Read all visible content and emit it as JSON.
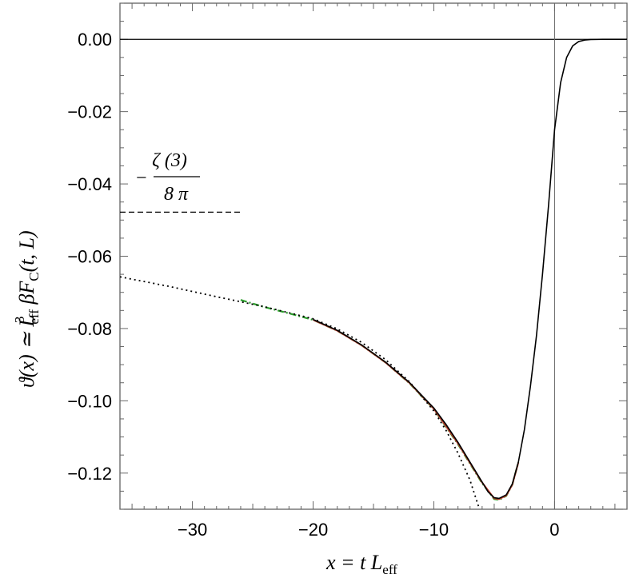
{
  "chart_data": {
    "type": "line",
    "xlabel": {
      "main": "x = t L",
      "sub": "eff"
    },
    "ylabel": {
      "part1": "ϑ(x) ≃ L",
      "sup": "3",
      "sub1": "eff",
      "part2": " βF",
      "sub2": "C",
      "part3": "(t, L)"
    },
    "xlim": [
      -36,
      6
    ],
    "ylim": [
      -0.13,
      0.01
    ],
    "x_ticks": [
      -30,
      -20,
      -10,
      0
    ],
    "x_tick_labels": [
      "−30",
      "−20",
      "−10",
      "0"
    ],
    "y_ticks": [
      0.0,
      -0.02,
      -0.04,
      -0.06,
      -0.08,
      -0.1,
      -0.12
    ],
    "y_tick_labels": [
      "0.00",
      "−0.02",
      "−0.04",
      "−0.06",
      "−0.08",
      "−0.10",
      "−0.12"
    ],
    "annotation": {
      "minus": "−",
      "numerator": "ζ (3)",
      "denominator": "8 π"
    },
    "reference_level": {
      "x": [
        -36,
        -26
      ],
      "y": -0.0478
    },
    "series": [
      {
        "style": "solid",
        "color": "#000000",
        "x": [
          -20,
          -18,
          -16,
          -14,
          -12,
          -10,
          -9,
          -8,
          -7,
          -6,
          -5.5,
          -5,
          -4.6,
          -4,
          -3.5,
          -3,
          -2.5,
          -2,
          -1.5,
          -1,
          -0.5,
          0,
          0.5,
          1,
          1.5,
          2,
          2.5,
          3,
          4,
          5,
          6
        ],
        "y": [
          -0.0775,
          -0.0805,
          -0.0845,
          -0.0893,
          -0.095,
          -0.102,
          -0.1065,
          -0.1115,
          -0.117,
          -0.1225,
          -0.1252,
          -0.1268,
          -0.127,
          -0.126,
          -0.123,
          -0.117,
          -0.108,
          -0.096,
          -0.082,
          -0.065,
          -0.046,
          -0.025,
          -0.012,
          -0.005,
          -0.0018,
          -0.0006,
          -0.0002,
          -5e-05,
          0,
          0,
          0
        ]
      },
      {
        "style": "dotted",
        "color": "#000000",
        "x": [
          -36,
          -32,
          -28,
          -24,
          -20,
          -18,
          -16,
          -14,
          -12,
          -10,
          -9,
          -8,
          -7,
          -6.3
        ],
        "y": [
          -0.0657,
          -0.0683,
          -0.0712,
          -0.074,
          -0.0773,
          -0.0801,
          -0.0838,
          -0.0886,
          -0.0948,
          -0.1028,
          -0.1081,
          -0.1145,
          -0.122,
          -0.1292
        ]
      },
      {
        "style": "dash-dot",
        "color": "#2a9d2a",
        "x": [
          -26,
          -24,
          -22,
          -20,
          -18,
          -16,
          -14,
          -12,
          -10,
          -8,
          -6,
          -5,
          -4.6,
          -4,
          -3.5,
          -3
        ],
        "y": [
          -0.0721,
          -0.0741,
          -0.0758,
          -0.0776,
          -0.0806,
          -0.0846,
          -0.0894,
          -0.0952,
          -0.1023,
          -0.112,
          -0.1228,
          -0.1272,
          -0.1274,
          -0.1263,
          -0.1232,
          -0.117
        ]
      },
      {
        "style": "solid",
        "color": "#c0392b",
        "x": [
          -20,
          -18,
          -16,
          -14,
          -12,
          -10,
          -8,
          -6,
          -5,
          -4.6,
          -4,
          -3.5,
          -3
        ],
        "y": [
          -0.0776,
          -0.0806,
          -0.0846,
          -0.0894,
          -0.0951,
          -0.1022,
          -0.1118,
          -0.1226,
          -0.127,
          -0.1272,
          -0.1262,
          -0.1232,
          -0.1171
        ]
      }
    ],
    "zero_lines": {
      "horizontal_y": 0,
      "vertical_x": 0
    },
    "grid": false,
    "legend": "none"
  }
}
